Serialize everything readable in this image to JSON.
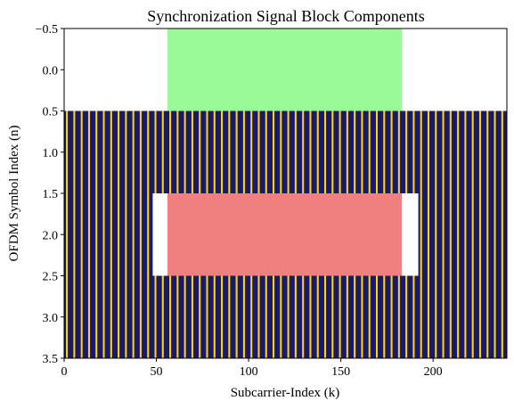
{
  "chart_data": {
    "type": "heatmap",
    "title": "Synchronization Signal Block Components",
    "xlabel": "Subcarrier-Index (k)",
    "ylabel": "OFDM Symbol Index (n)",
    "xlim": [
      0,
      240
    ],
    "ylim": [
      3.5,
      -0.5
    ],
    "x_ticks": [
      0,
      50,
      100,
      150,
      200
    ],
    "y_ticks": [
      -0.5,
      0.0,
      0.5,
      1.0,
      1.5,
      2.0,
      2.5,
      3.0,
      3.5
    ],
    "x_tick_labels": [
      "0",
      "50",
      "100",
      "150",
      "200"
    ],
    "y_tick_labels": [
      "−0.5",
      "0.0",
      "0.5",
      "1.0",
      "1.5",
      "2.0",
      "2.5",
      "3.0",
      "3.5"
    ],
    "grid": false,
    "legend": "none",
    "colors": {
      "pss": "#98fb98",
      "sss": "#f08080",
      "pbch": "#191970",
      "dmrs": "#ffd700",
      "empty": "#ffffff"
    },
    "regions": [
      {
        "component": "pss",
        "k_range": [
          56,
          182
        ],
        "symbol": 0
      },
      {
        "component": "pbch",
        "k_range": [
          0,
          239
        ],
        "symbol": 1
      },
      {
        "component": "pbch",
        "k_range": [
          0,
          47
        ],
        "symbol": 2
      },
      {
        "component": "sss",
        "k_range": [
          56,
          182
        ],
        "symbol": 2
      },
      {
        "component": "pbch",
        "k_range": [
          192,
          239
        ],
        "symbol": 2
      },
      {
        "component": "pbch",
        "k_range": [
          0,
          239
        ],
        "symbol": 3
      }
    ],
    "dmrs_subcarrier_spacing": 4,
    "dmrs_offset": 1
  }
}
